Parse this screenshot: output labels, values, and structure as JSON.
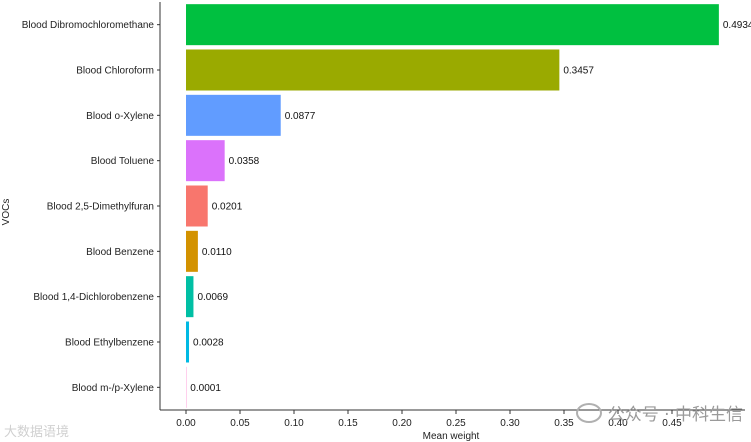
{
  "chart_data": {
    "type": "bar",
    "orientation": "horizontal",
    "categories": [
      "Blood Dibromochloromethane",
      "Blood Chloroform",
      "Blood o-Xylene",
      "Blood Toluene",
      "Blood 2,5-Dimethylfuran",
      "Blood Benzene",
      "Blood 1,4-Dichlorobenzene",
      "Blood Ethylbenzene",
      "Blood m-/p-Xylene"
    ],
    "values": [
      0.4934,
      0.3457,
      0.0877,
      0.0358,
      0.0201,
      0.011,
      0.0069,
      0.0028,
      0.0001
    ],
    "value_labels": [
      "0.4934",
      "0.3457",
      "0.0877",
      "0.0358",
      "0.0201",
      "0.0110",
      "0.0069",
      "0.0028",
      "0.0001"
    ],
    "colors": [
      "#00C040",
      "#9AAA00",
      "#619CFF",
      "#DB72FB",
      "#F8766D",
      "#D39200",
      "#00BFA4",
      "#00B9E3",
      "#FF61C3"
    ],
    "xlabel": "Mean weight",
    "ylabel": "VOCs",
    "xlim": [
      -0.025,
      0.5
    ],
    "xticks": [
      0.0,
      0.05,
      0.1,
      0.15,
      0.2,
      0.25,
      0.3,
      0.35,
      0.4,
      0.45
    ],
    "xtick_labels": [
      "0.00",
      "0.05",
      "0.10",
      "0.15",
      "0.20",
      "0.25",
      "0.30",
      "0.35",
      "0.40",
      "0.45"
    ],
    "grid": false,
    "legend": "none"
  },
  "watermark": {
    "left_text": "大数据语境",
    "right_text": "公众号 · 中科生信"
  }
}
